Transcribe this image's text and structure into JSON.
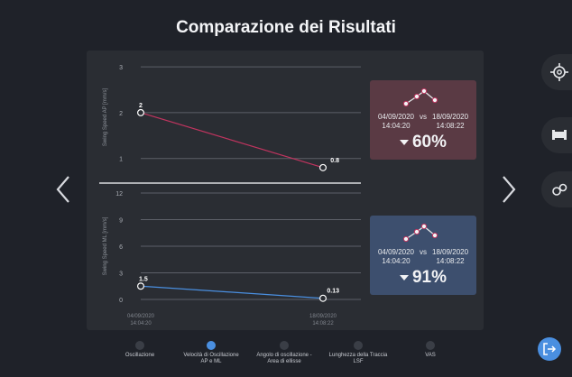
{
  "page": {
    "title": "Comparazione dei Risultati"
  },
  "chart_data": [
    {
      "type": "line",
      "ylabel": "Swing Speed AP [mm/s]",
      "ylim": [
        0.6,
        3.2
      ],
      "yticks": [
        1,
        2,
        3
      ],
      "x": [
        "04/09/2020 14:04:20",
        "18/09/2020 14:08:22"
      ],
      "series": [
        {
          "values": [
            2,
            0.8
          ],
          "color": "#c0345f"
        }
      ],
      "point_labels": [
        "2",
        "0.8"
      ]
    },
    {
      "type": "line",
      "ylabel": "Swing Speed ML [mm/s]",
      "ylim": [
        0,
        12
      ],
      "yticks": [
        0,
        3,
        6,
        9,
        12
      ],
      "x": [
        "04/09/2020 14:04:20",
        "18/09/2020 14:08:22"
      ],
      "xtick_labels": [
        [
          "04/09/2020",
          "14:04:20"
        ],
        [
          "18/09/2020",
          "14:08:22"
        ]
      ],
      "series": [
        {
          "values": [
            1.5,
            0.13
          ],
          "color": "#4a8fe0"
        }
      ],
      "point_labels": [
        "1.5",
        "0.13"
      ]
    }
  ],
  "cards": [
    {
      "color": "#5a3a44",
      "date_a": "04/09/2020",
      "time_a": "14:04:20",
      "vs": "vs",
      "date_b": "18/09/2020",
      "time_b": "14:08:22",
      "percent": "60%",
      "direction": "down"
    },
    {
      "color": "#3d4f6e",
      "date_a": "04/09/2020",
      "time_a": "14:04:20",
      "vs": "vs",
      "date_b": "18/09/2020",
      "time_b": "14:08:22",
      "percent": "91%",
      "direction": "down"
    }
  ],
  "carousel": {
    "items": [
      {
        "line1": "Oscillazione",
        "line2": "",
        "active": false
      },
      {
        "line1": "Velocità di Oscillazione",
        "line2": "AP e ML",
        "active": true
      },
      {
        "line1": "Angolo di oscillazione -",
        "line2": "Area di ellisse",
        "active": false
      },
      {
        "line1": "Lunghezza della Traccia",
        "line2": "LSF",
        "active": false
      },
      {
        "line1": "VAS",
        "line2": "",
        "active": false
      }
    ]
  },
  "icons": {
    "prev": "chevron-left-icon",
    "next": "chevron-right-icon",
    "target": "crosshair-icon",
    "bed": "bed-icon",
    "tools": "tools-icon",
    "exit": "logout-icon"
  },
  "colors": {
    "accent": "#4a8fe0",
    "red": "#c0345f",
    "background": "#1f2229",
    "panel": "#2a2d33"
  }
}
